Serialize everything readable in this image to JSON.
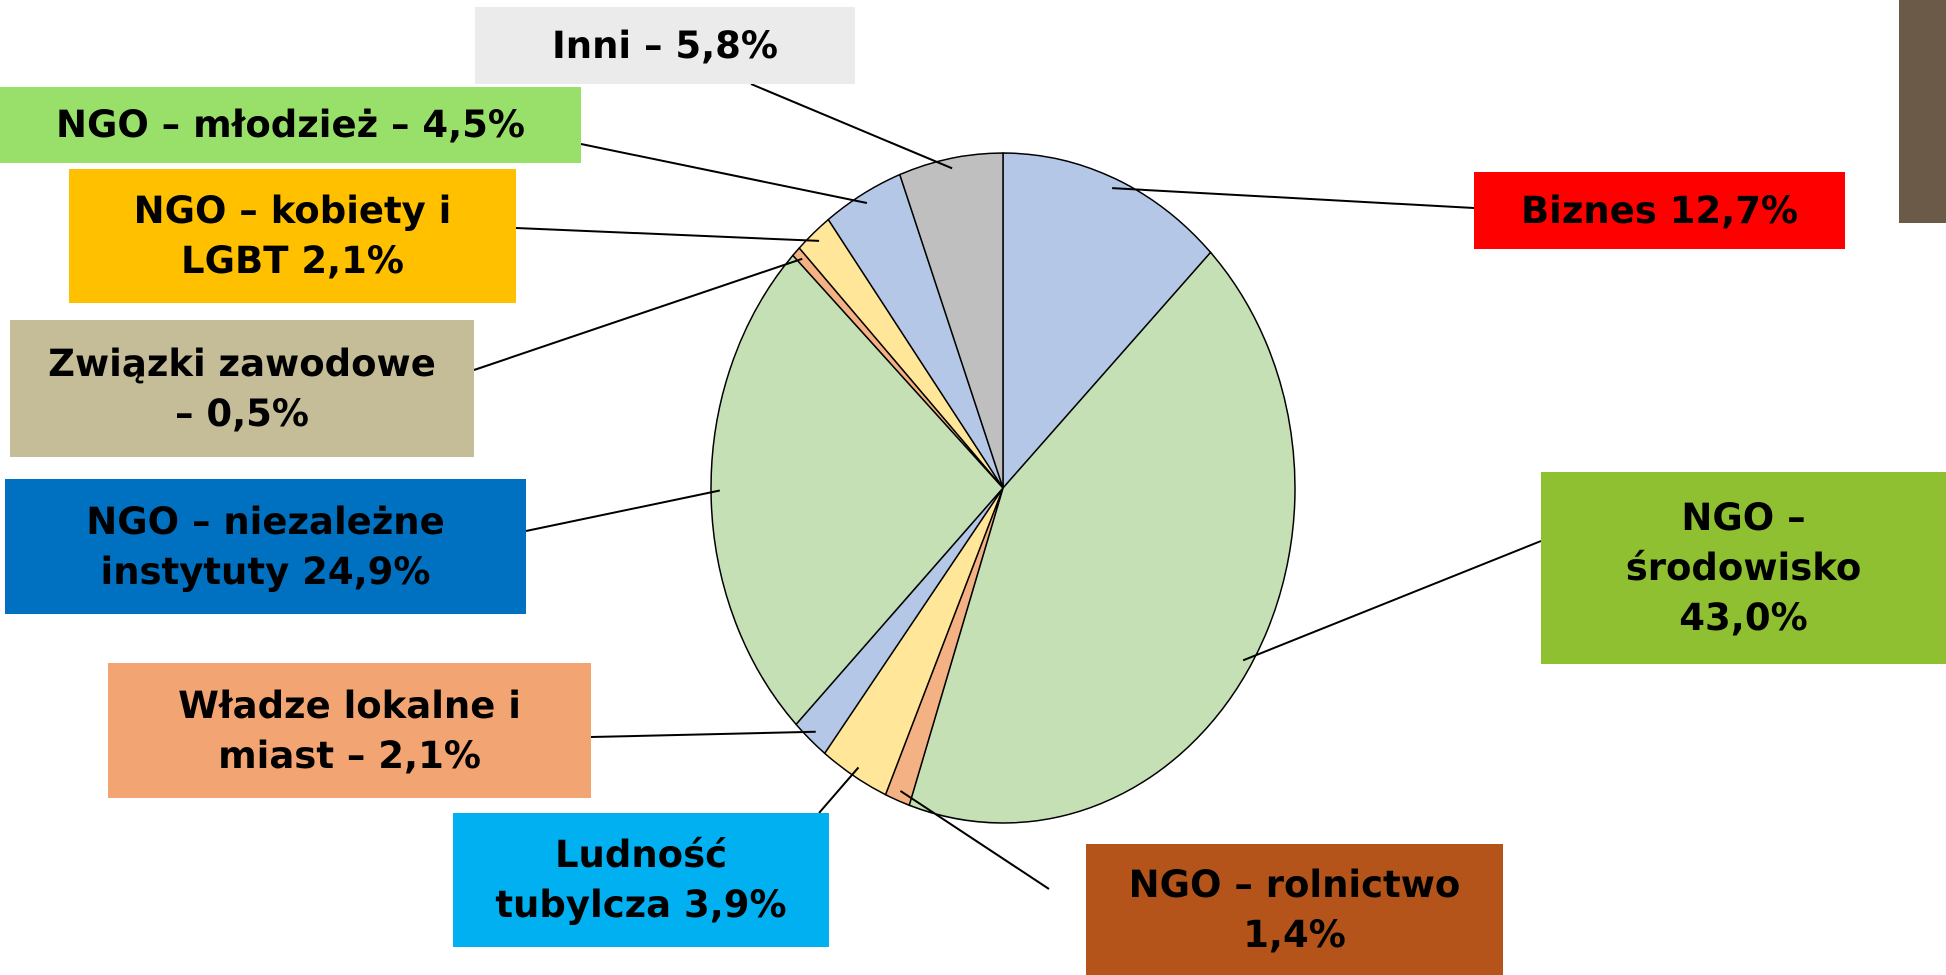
{
  "chart_data": {
    "type": "pie",
    "categories": [
      "Biznes 12,7%",
      "NGO –\nśrodowisko\n43,0%",
      "NGO – rolnictwo\n1,4%",
      "Ludność\ntubylcza 3,9%",
      "Władze lokalne i\nmiast – 2,1%",
      "NGO – niezależne\ninstytuty 24,9%",
      "Związki zawodowe\n– 0,5%",
      "NGO – kobiety i\nLGBT 2,1%",
      "NGO – młodzież – 4,5%",
      "Inni – 5,8%"
    ],
    "values": [
      12.7,
      43.0,
      1.4,
      3.9,
      2.1,
      24.9,
      0.5,
      2.1,
      4.5,
      5.8
    ],
    "colors": [
      "#b4c7e7",
      "#c5e0b4",
      "#f4b183",
      "#ffe699",
      "#b4c7e7",
      "#c5e0b4",
      "#f4b183",
      "#ffe699",
      "#b4c7e7",
      "#bfbfbf"
    ],
    "label_colors": [
      "#ff0000",
      "#8fc031",
      "#b4541a",
      "#00b0f0",
      "#f2a573",
      "#0070c0",
      "#c4bd97",
      "#ffc000",
      "#99e06a",
      "#ebebeb"
    ]
  }
}
